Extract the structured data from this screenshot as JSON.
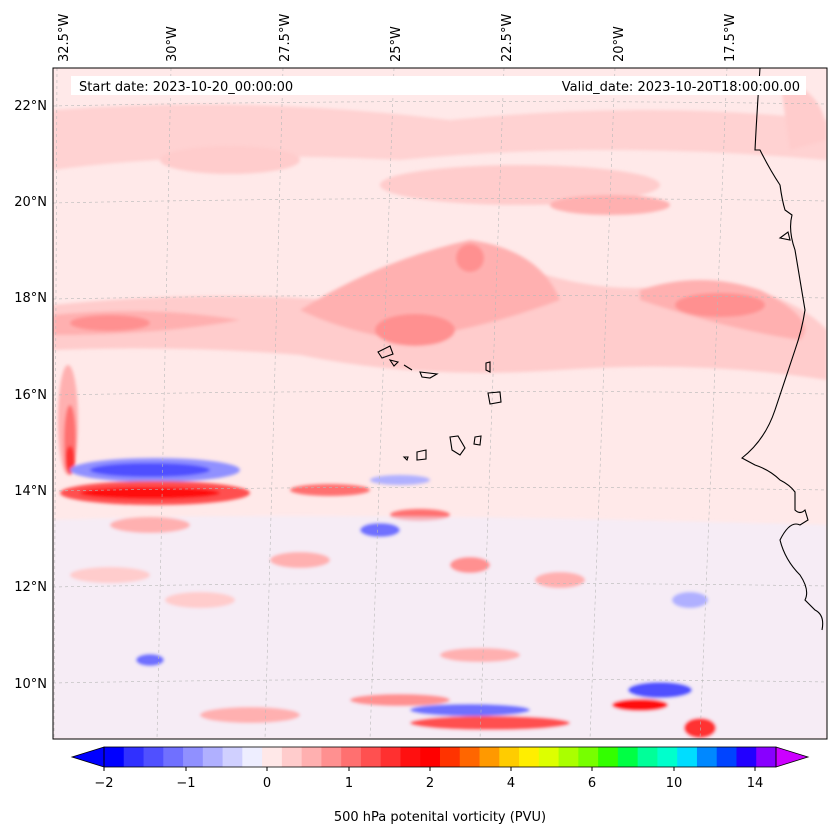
{
  "chart_data": {
    "type": "heatmap",
    "title": "",
    "start_date_text": "Start date: 2023-10-20_00:00:00",
    "valid_date_text": "Valid_date: 2023-10-20T18:00:00.00",
    "lon_ticks": [
      "32.5°W",
      "30°W",
      "27.5°W",
      "25°W",
      "22.5°W",
      "20°W",
      "17.5°W"
    ],
    "lat_ticks": [
      "22°N",
      "20°N",
      "18°N",
      "16°N",
      "14°N",
      "12°N",
      "10°N"
    ],
    "colorbar": {
      "label": "500 hPa potenital vorticity (PVU)",
      "tick_labels": [
        "−2",
        "−1",
        "0",
        "1",
        "2",
        "4",
        "6",
        "10",
        "14"
      ],
      "colors": [
        "#0000ff",
        "#3030ff",
        "#5050ff",
        "#7070ff",
        "#9090ff",
        "#b0b0ff",
        "#d0d0ff",
        "#eeeeff",
        "#ffe8e8",
        "#ffcccc",
        "#ffb0b0",
        "#ff9090",
        "#ff7070",
        "#ff5050",
        "#ff3030",
        "#ff1010",
        "#ff0000",
        "#ff3300",
        "#ff6600",
        "#ff9900",
        "#ffcc00",
        "#ffee00",
        "#ddff00",
        "#aaff00",
        "#77ff00",
        "#33ff00",
        "#00ff44",
        "#00ff99",
        "#00ffcc",
        "#00ddff",
        "#0088ff",
        "#0044ff",
        "#2200ff",
        "#8800ff"
      ],
      "under_color": "#0000ff",
      "over_color": "#cc00ff"
    },
    "grid": true,
    "background_color": "#ffe9e9",
    "features": [
      {
        "name": "Cape Verde islands"
      },
      {
        "name": "West African coastline"
      }
    ]
  }
}
